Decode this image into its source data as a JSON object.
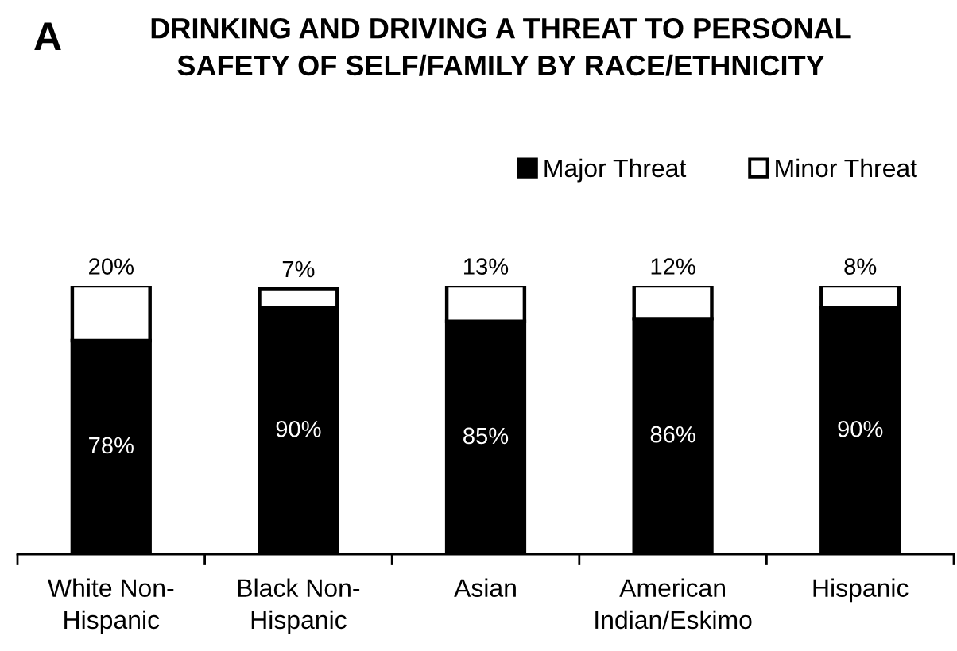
{
  "chart_data": {
    "type": "bar",
    "title": "DRINKING AND DRIVING A THREAT TO PERSONAL\nSAFETY OF SELF/FAMILY BY RACE/ETHNICITY",
    "annotations": [
      "A"
    ],
    "categories": [
      "White Non-\nHispanic",
      "Black Non-\nHispanic",
      "Asian",
      "American\nIndian/Eskimo",
      "Hispanic"
    ],
    "stacked": true,
    "legend": "top right",
    "series": [
      {
        "name": "Major Threat",
        "color": "#000000",
        "values": [
          78,
          90,
          85,
          86,
          90
        ],
        "value_labels": [
          "78%",
          "90%",
          "85%",
          "86%",
          "90%"
        ]
      },
      {
        "name": "Minor Threat",
        "color": "#ffffff",
        "values": [
          20,
          7,
          13,
          12,
          8
        ],
        "value_labels": [
          "20%",
          "7%",
          "13%",
          "12%",
          "8%"
        ]
      }
    ]
  }
}
